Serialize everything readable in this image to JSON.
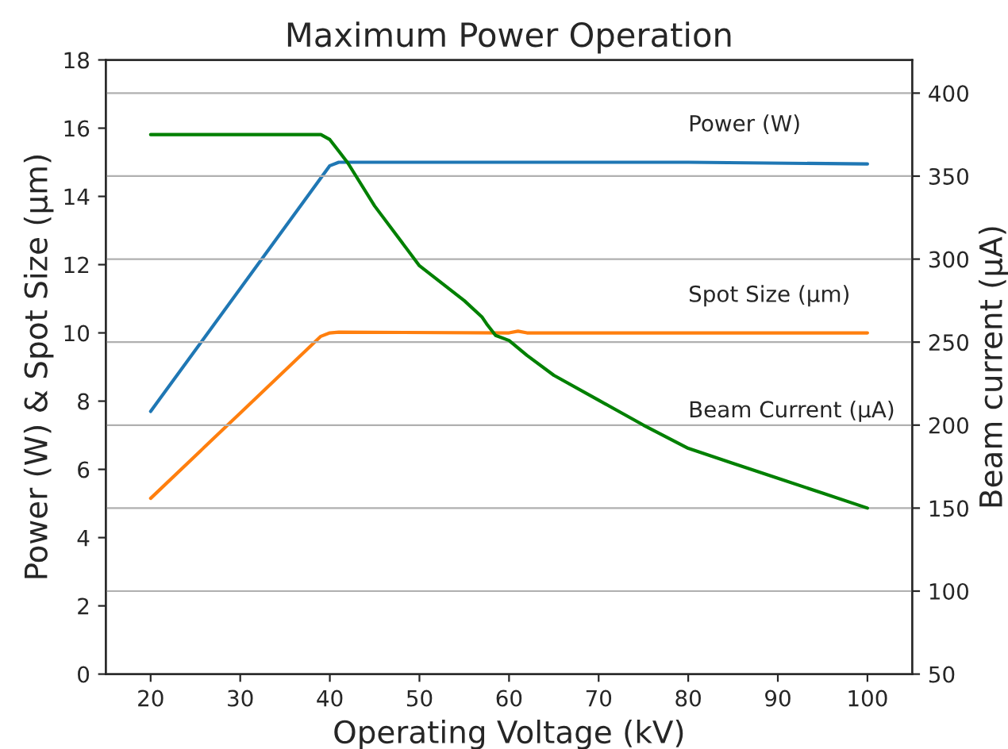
{
  "chart_data": {
    "type": "line",
    "title": "Maximum Power Operation",
    "xlabel": "Operating Voltage (kV)",
    "ylabel": "Power (W) & Spot Size (μm)",
    "y2label": "Beam current (μA)",
    "xlim": [
      15,
      105
    ],
    "xticks": [
      20,
      30,
      40,
      50,
      60,
      70,
      80,
      90,
      100
    ],
    "ylim": [
      0,
      18
    ],
    "yticks": [
      0,
      2,
      4,
      6,
      8,
      10,
      12,
      14,
      16,
      18
    ],
    "y2lim": [
      50,
      420
    ],
    "y2ticks": [
      50,
      100,
      150,
      200,
      250,
      300,
      350,
      400
    ],
    "grid": "y",
    "legend": false,
    "series": [
      {
        "name": "Power (W)",
        "color": "#1f77b4",
        "x": [
          20,
          40,
          41,
          60,
          80,
          100
        ],
        "values": [
          7.7,
          14.9,
          15.0,
          15.0,
          15.0,
          14.95
        ]
      },
      {
        "name": "Spot Size (μm)",
        "color": "#ff7f0e",
        "x": [
          20,
          39,
          40,
          41,
          60,
          61,
          62,
          80,
          100
        ],
        "values": [
          5.15,
          9.9,
          10.0,
          10.02,
          10.0,
          10.05,
          10.0,
          10.0,
          10.0
        ]
      },
      {
        "name": "Beam Current (μA)",
        "color": "#008000",
        "axis": "y2",
        "x": [
          20,
          38,
          39,
          40,
          41,
          42,
          45,
          50,
          55,
          57,
          57.5,
          58.5,
          60,
          62,
          65,
          70,
          75,
          80,
          85,
          90,
          95,
          100
        ],
        "values": [
          375,
          375,
          375,
          372,
          365,
          358,
          332,
          296,
          275,
          265,
          261,
          254,
          251,
          242,
          230,
          215,
          200,
          186,
          177,
          168,
          159,
          150
        ]
      }
    ]
  }
}
